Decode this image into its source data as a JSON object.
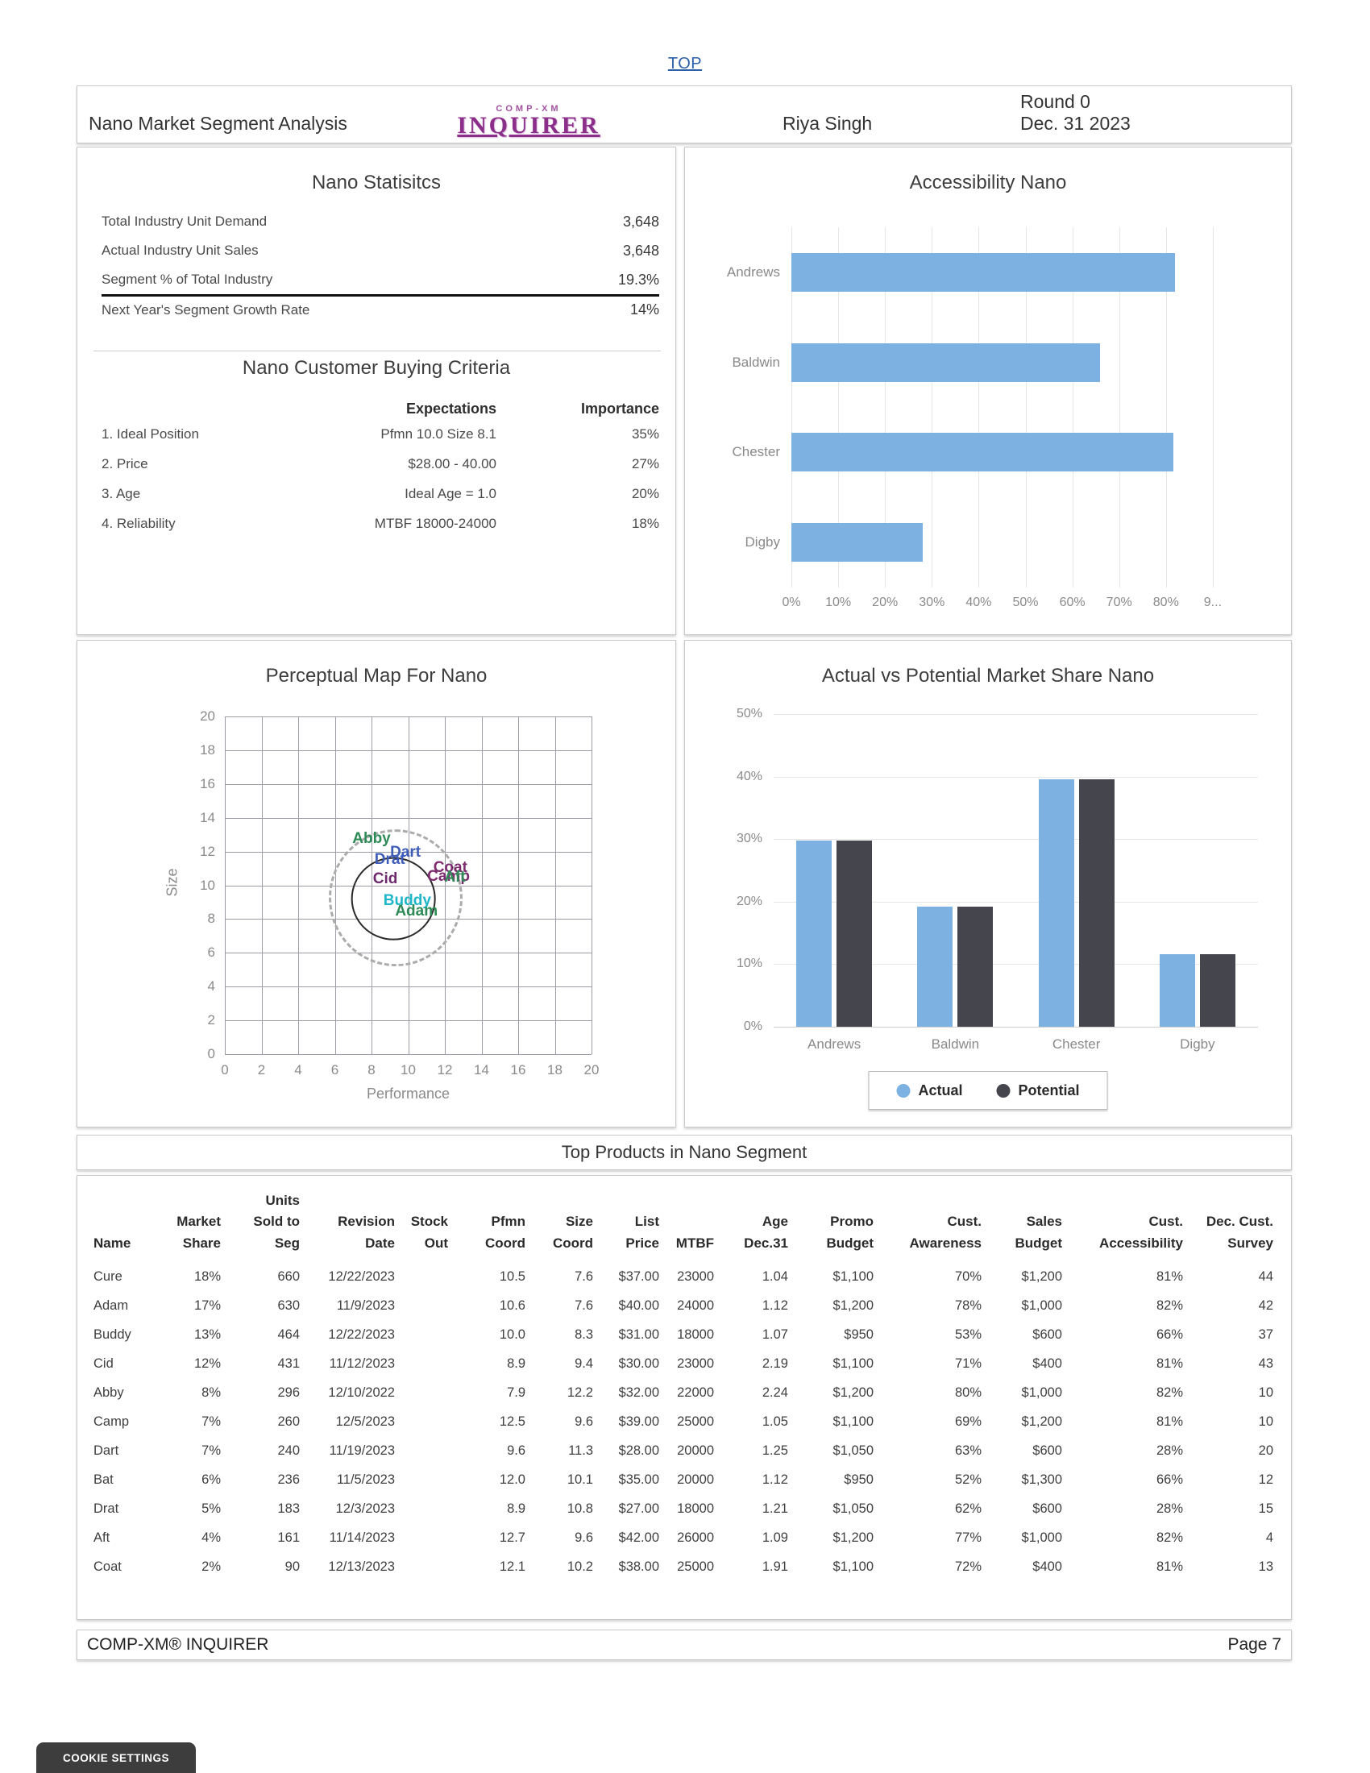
{
  "page": {
    "top_link": "TOP",
    "footer_left": "COMP-XM® INQUIRER",
    "footer_right": "Page 7",
    "cookie_button": "COOKIE SETTINGS",
    "accent_blue": "#7db1e2",
    "accent_dark": "#45454d",
    "link_blue": "#2b5fa7",
    "logo_purple": "#8b2f8b"
  },
  "header": {
    "title": "Nano Market Segment Analysis",
    "logo_top": "COMP-XM",
    "logo_main": "INQUIRER",
    "student": "Riya Singh",
    "round": "Round 0",
    "date": "Dec. 31 2023"
  },
  "stats": {
    "title": "Nano Statisitcs",
    "rows": [
      {
        "label": "Total Industry Unit Demand",
        "value": "3,648"
      },
      {
        "label": "Actual Industry Unit Sales",
        "value": "3,648"
      },
      {
        "label": "Segment % of Total Industry",
        "value": "19.3%"
      },
      {
        "label": "Next Year's Segment Growth Rate",
        "value": "14%"
      }
    ]
  },
  "criteria": {
    "title": "Nano Customer Buying Criteria",
    "col_expectations": "Expectations",
    "col_importance": "Importance",
    "rows": [
      {
        "label": "1. Ideal Position",
        "expectation": "Pfmn 10.0 Size 8.1",
        "importance": "35%"
      },
      {
        "label": "2. Price",
        "expectation": "$28.00 - 40.00",
        "importance": "27%"
      },
      {
        "label": "3. Age",
        "expectation": "Ideal Age = 1.0",
        "importance": "20%"
      },
      {
        "label": "4. Reliability",
        "expectation": "MTBF 18000-24000",
        "importance": "18%"
      }
    ]
  },
  "chart_data": [
    {
      "id": "accessibility",
      "type": "bar",
      "orientation": "horizontal",
      "title": "Accessibility Nano",
      "categories": [
        "Andrews",
        "Baldwin",
        "Chester",
        "Digby"
      ],
      "values": [
        82,
        66,
        81.5,
        28
      ],
      "xlim": [
        0,
        100
      ],
      "tick_labels": [
        "0%",
        "10%",
        "20%",
        "30%",
        "40%",
        "50%",
        "60%",
        "70%",
        "80%",
        "9..."
      ],
      "bar_color": "#7db1e2",
      "grid": true,
      "legend_position": "none"
    },
    {
      "id": "map",
      "type": "scatter",
      "title": "Perceptual Map For Nano",
      "xlabel": "Performance",
      "ylabel": "Size",
      "xlim": [
        0,
        20
      ],
      "ylim": [
        0,
        20
      ],
      "x_ticks": [
        "0",
        "2",
        "4",
        "6",
        "8",
        "10",
        "12",
        "14",
        "16",
        "18",
        "20"
      ],
      "y_ticks": [
        "0",
        "2",
        "4",
        "6",
        "8",
        "10",
        "12",
        "14",
        "16",
        "18",
        "20"
      ],
      "grid": true,
      "circles": [
        {
          "name": "rough-cut-circle",
          "cx": 9.3,
          "cy": 9.25,
          "rx": 3.65,
          "ry": 4.05,
          "style": "dashed"
        },
        {
          "name": "fine-cut-circle",
          "cx": 9.2,
          "cy": 9.2,
          "rx": 2.3,
          "ry": 2.45,
          "style": "solid"
        }
      ],
      "points": [
        {
          "label": "Abby",
          "x": 8.0,
          "y": 12.75,
          "color": "#2e8b57"
        },
        {
          "label": "Dart",
          "x": 9.85,
          "y": 11.95,
          "color": "#3f5cb8"
        },
        {
          "label": "Drat",
          "x": 9.0,
          "y": 11.5,
          "color": "#3f5cb8"
        },
        {
          "label": "Coat",
          "x": 12.3,
          "y": 11.05,
          "color": "#7d2b6e"
        },
        {
          "label": "Camp",
          "x": 12.2,
          "y": 10.5,
          "color": "#7d2b6e"
        },
        {
          "label": "Aft",
          "x": 12.55,
          "y": 10.45,
          "color": "#2e8b57"
        },
        {
          "label": "Cid",
          "x": 8.75,
          "y": 10.35,
          "color": "#6d2a6d"
        },
        {
          "label": "Buddy",
          "x": 9.95,
          "y": 9.05,
          "color": "#1fb6c9"
        },
        {
          "label": "Adam",
          "x": 10.45,
          "y": 8.45,
          "color": "#2e8b57"
        }
      ]
    },
    {
      "id": "share",
      "type": "bar",
      "orientation": "vertical",
      "title": "Actual vs Potential Market Share Nano",
      "categories": [
        "Andrews",
        "Baldwin",
        "Chester",
        "Digby"
      ],
      "series": [
        {
          "name": "Actual",
          "color": "#7db1e2",
          "values": [
            29.8,
            19.2,
            39.5,
            11.6
          ]
        },
        {
          "name": "Potential",
          "color": "#45454d",
          "values": [
            29.8,
            19.2,
            39.5,
            11.6
          ]
        }
      ],
      "ylim": [
        0,
        50
      ],
      "tick_labels": [
        "0%",
        "10%",
        "20%",
        "30%",
        "40%",
        "50%"
      ],
      "grid": true,
      "legend_position": "bottom"
    }
  ],
  "products": {
    "title": "Top Products in Nano Segment",
    "columns": [
      "Name",
      "Market\nShare",
      "Units\nSold to\nSeg",
      "Revision\nDate",
      "Stock\nOut",
      "Pfmn\nCoord",
      "Size\nCoord",
      "List\nPrice",
      "MTBF",
      "Age\nDec.31",
      "Promo\nBudget",
      "Cust.\nAwareness",
      "Sales\nBudget",
      "Cust.\nAccessibility",
      "Dec. Cust.\nSurvey"
    ],
    "rows": [
      [
        "Cure",
        "18%",
        "660",
        "12/22/2023",
        "",
        "10.5",
        "7.6",
        "$37.00",
        "23000",
        "1.04",
        "$1,100",
        "70%",
        "$1,200",
        "81%",
        "44"
      ],
      [
        "Adam",
        "17%",
        "630",
        "11/9/2023",
        "",
        "10.6",
        "7.6",
        "$40.00",
        "24000",
        "1.12",
        "$1,200",
        "78%",
        "$1,000",
        "82%",
        "42"
      ],
      [
        "Buddy",
        "13%",
        "464",
        "12/22/2023",
        "",
        "10.0",
        "8.3",
        "$31.00",
        "18000",
        "1.07",
        "$950",
        "53%",
        "$600",
        "66%",
        "37"
      ],
      [
        "Cid",
        "12%",
        "431",
        "11/12/2023",
        "",
        "8.9",
        "9.4",
        "$30.00",
        "23000",
        "2.19",
        "$1,100",
        "71%",
        "$400",
        "81%",
        "43"
      ],
      [
        "Abby",
        "8%",
        "296",
        "12/10/2022",
        "",
        "7.9",
        "12.2",
        "$32.00",
        "22000",
        "2.24",
        "$1,200",
        "80%",
        "$1,000",
        "82%",
        "10"
      ],
      [
        "Camp",
        "7%",
        "260",
        "12/5/2023",
        "",
        "12.5",
        "9.6",
        "$39.00",
        "25000",
        "1.05",
        "$1,100",
        "69%",
        "$1,200",
        "81%",
        "10"
      ],
      [
        "Dart",
        "7%",
        "240",
        "11/19/2023",
        "",
        "9.6",
        "11.3",
        "$28.00",
        "20000",
        "1.25",
        "$1,050",
        "63%",
        "$600",
        "28%",
        "20"
      ],
      [
        "Bat",
        "6%",
        "236",
        "11/5/2023",
        "",
        "12.0",
        "10.1",
        "$35.00",
        "20000",
        "1.12",
        "$950",
        "52%",
        "$1,300",
        "66%",
        "12"
      ],
      [
        "Drat",
        "5%",
        "183",
        "12/3/2023",
        "",
        "8.9",
        "10.8",
        "$27.00",
        "18000",
        "1.21",
        "$1,050",
        "62%",
        "$600",
        "28%",
        "15"
      ],
      [
        "Aft",
        "4%",
        "161",
        "11/14/2023",
        "",
        "12.7",
        "9.6",
        "$42.00",
        "26000",
        "1.09",
        "$1,200",
        "77%",
        "$1,000",
        "82%",
        "4"
      ],
      [
        "Coat",
        "2%",
        "90",
        "12/13/2023",
        "",
        "12.1",
        "10.2",
        "$38.00",
        "25000",
        "1.91",
        "$1,100",
        "72%",
        "$400",
        "81%",
        "13"
      ]
    ]
  }
}
